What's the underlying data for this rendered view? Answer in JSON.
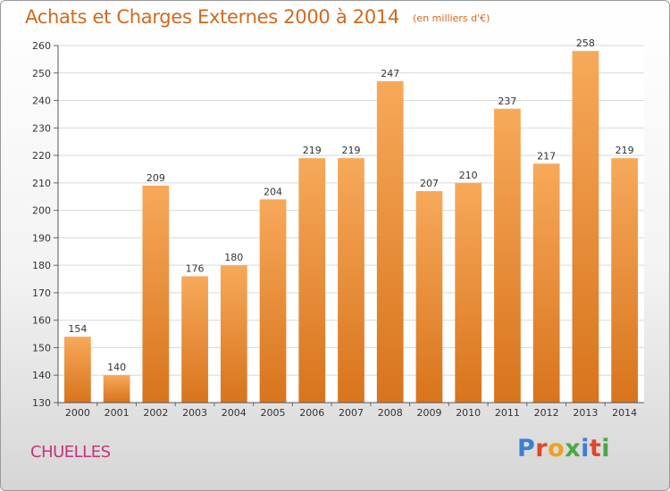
{
  "header": {
    "title": "Achats et Charges Externes 2000 à 2014",
    "subtitle": "(en milliers d'€)"
  },
  "footer": {
    "place": "CHUELLES",
    "brand": "Proxiti",
    "brand_letter_colors": [
      "#3a7fd5",
      "#e0462a",
      "#f0a020",
      "#49a843",
      "#3a7fd5",
      "#e0462a",
      "#49a843"
    ]
  },
  "colors": {
    "bar_top": "#f7a95a",
    "bar_bottom": "#d8741c",
    "grid": "#d9d9d9",
    "title": "#d2691e",
    "place": "#c8327a"
  },
  "chart_data": {
    "type": "bar",
    "categories": [
      "2000",
      "2001",
      "2002",
      "2003",
      "2004",
      "2005",
      "2006",
      "2007",
      "2008",
      "2009",
      "2010",
      "2011",
      "2012",
      "2013",
      "2014"
    ],
    "values": [
      154,
      140,
      209,
      176,
      180,
      204,
      219,
      219,
      247,
      207,
      210,
      237,
      217,
      258,
      219
    ],
    "title": "Achats et Charges Externes 2000 à 2014",
    "subtitle": "(en milliers d'€)",
    "ylim": [
      130,
      260
    ],
    "yticks": [
      130,
      140,
      150,
      160,
      170,
      180,
      190,
      200,
      210,
      220,
      230,
      240,
      250,
      260
    ],
    "grid": true,
    "data_labels": true
  }
}
